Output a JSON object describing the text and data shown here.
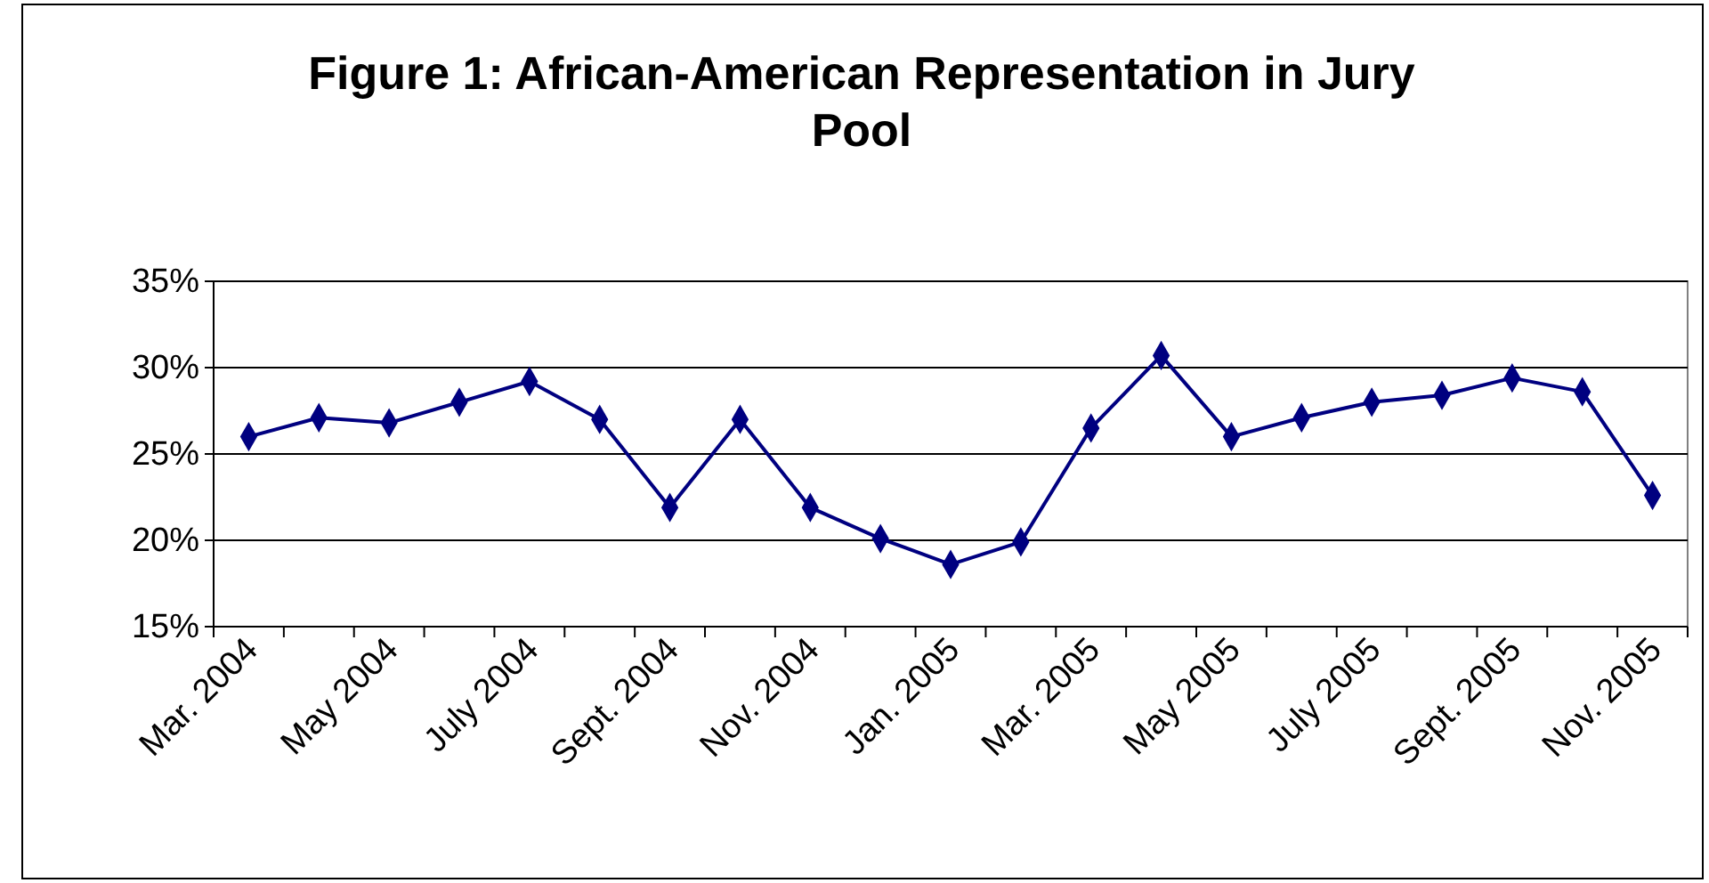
{
  "chart_data": {
    "type": "line",
    "title": "Figure 1: African-American Representation in Jury Pool",
    "categories": [
      "Mar. 2004",
      null,
      "May 2004",
      null,
      "July 2004",
      null,
      "Sept. 2004",
      null,
      "Nov. 2004",
      null,
      "Jan. 2005",
      null,
      "Mar. 2005",
      null,
      "May 2005",
      null,
      "July 2005",
      null,
      "Sept. 2005",
      null,
      "Nov. 2005"
    ],
    "series": [
      {
        "color": "#000080",
        "values": [
          26,
          27.1,
          26.8,
          28,
          29.2,
          27,
          21.9,
          27,
          21.9,
          20.1,
          18.6,
          19.9,
          26.5,
          30.7,
          26,
          27.1,
          28,
          28.4,
          29.4,
          28.6,
          22.6
        ]
      }
    ],
    "ylim": [
      15,
      35
    ],
    "yticks": [
      {
        "value": 15,
        "label": "15%"
      },
      {
        "value": 20,
        "label": "20%"
      },
      {
        "value": 25,
        "label": "25%"
      },
      {
        "value": 30,
        "label": "30%"
      },
      {
        "value": 35,
        "label": "35%"
      }
    ],
    "grid": "y",
    "marker": "diamond",
    "line_style": "solid"
  }
}
